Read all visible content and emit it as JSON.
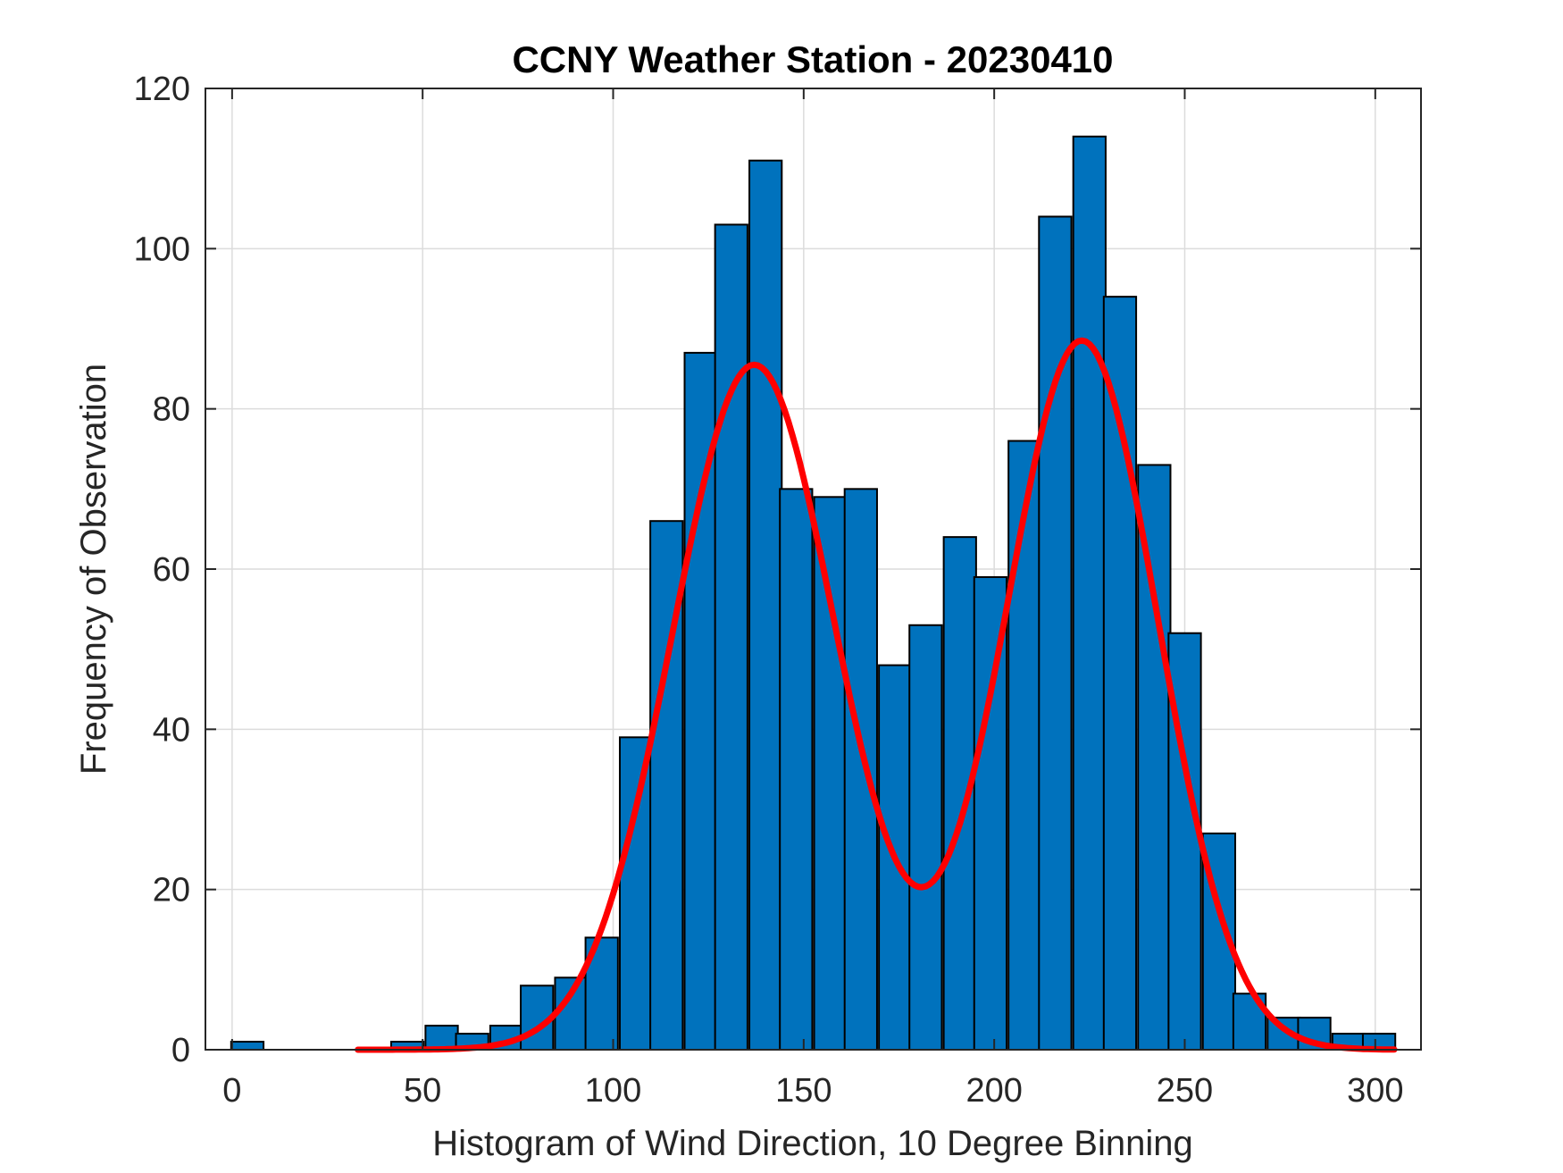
{
  "chart_data": {
    "type": "bar",
    "title": "CCNY Weather Station - 20230410",
    "xlabel": "Histogram of Wind Direction, 10 Degree Binning",
    "ylabel": "Frequency of Observation",
    "xlim": [
      -7,
      312
    ],
    "ylim": [
      0,
      120
    ],
    "xticks": [
      0,
      50,
      100,
      150,
      200,
      250,
      300
    ],
    "yticks": [
      0,
      20,
      40,
      60,
      80,
      100,
      120
    ],
    "grid": true,
    "bin_width": 8.5,
    "bins": [
      {
        "center": 4,
        "value": 1
      },
      {
        "center": 38,
        "value": 0
      },
      {
        "center": 46,
        "value": 1
      },
      {
        "center": 55,
        "value": 3
      },
      {
        "center": 63,
        "value": 2
      },
      {
        "center": 72,
        "value": 3
      },
      {
        "center": 80,
        "value": 8
      },
      {
        "center": 89,
        "value": 9
      },
      {
        "center": 97,
        "value": 14
      },
      {
        "center": 106,
        "value": 39
      },
      {
        "center": 114,
        "value": 66
      },
      {
        "center": 123,
        "value": 87
      },
      {
        "center": 131,
        "value": 103
      },
      {
        "center": 140,
        "value": 111
      },
      {
        "center": 148,
        "value": 70
      },
      {
        "center": 157,
        "value": 69
      },
      {
        "center": 165,
        "value": 70
      },
      {
        "center": 174,
        "value": 48
      },
      {
        "center": 182,
        "value": 53
      },
      {
        "center": 191,
        "value": 64
      },
      {
        "center": 199,
        "value": 59
      },
      {
        "center": 208,
        "value": 76
      },
      {
        "center": 216,
        "value": 104
      },
      {
        "center": 225,
        "value": 114
      },
      {
        "center": 233,
        "value": 94
      },
      {
        "center": 242,
        "value": 73
      },
      {
        "center": 250,
        "value": 52
      },
      {
        "center": 259,
        "value": 27
      },
      {
        "center": 267,
        "value": 7
      },
      {
        "center": 276,
        "value": 4
      },
      {
        "center": 284,
        "value": 4
      },
      {
        "center": 293,
        "value": 2
      },
      {
        "center": 301,
        "value": 2
      }
    ],
    "fit_curve": {
      "name": "bimodal fit",
      "x_range": [
        33,
        305
      ],
      "components": [
        {
          "amplitude": 85.5,
          "mean": 137,
          "sigma": 21.5
        },
        {
          "amplitude": 88.5,
          "mean": 223,
          "sigma": 20
        }
      ]
    },
    "colors": {
      "bar_fill": "#0072BD",
      "bar_edge": "#000000",
      "curve": "#FF0000",
      "grid": "#DCDCDC",
      "axes": "#262626"
    }
  }
}
